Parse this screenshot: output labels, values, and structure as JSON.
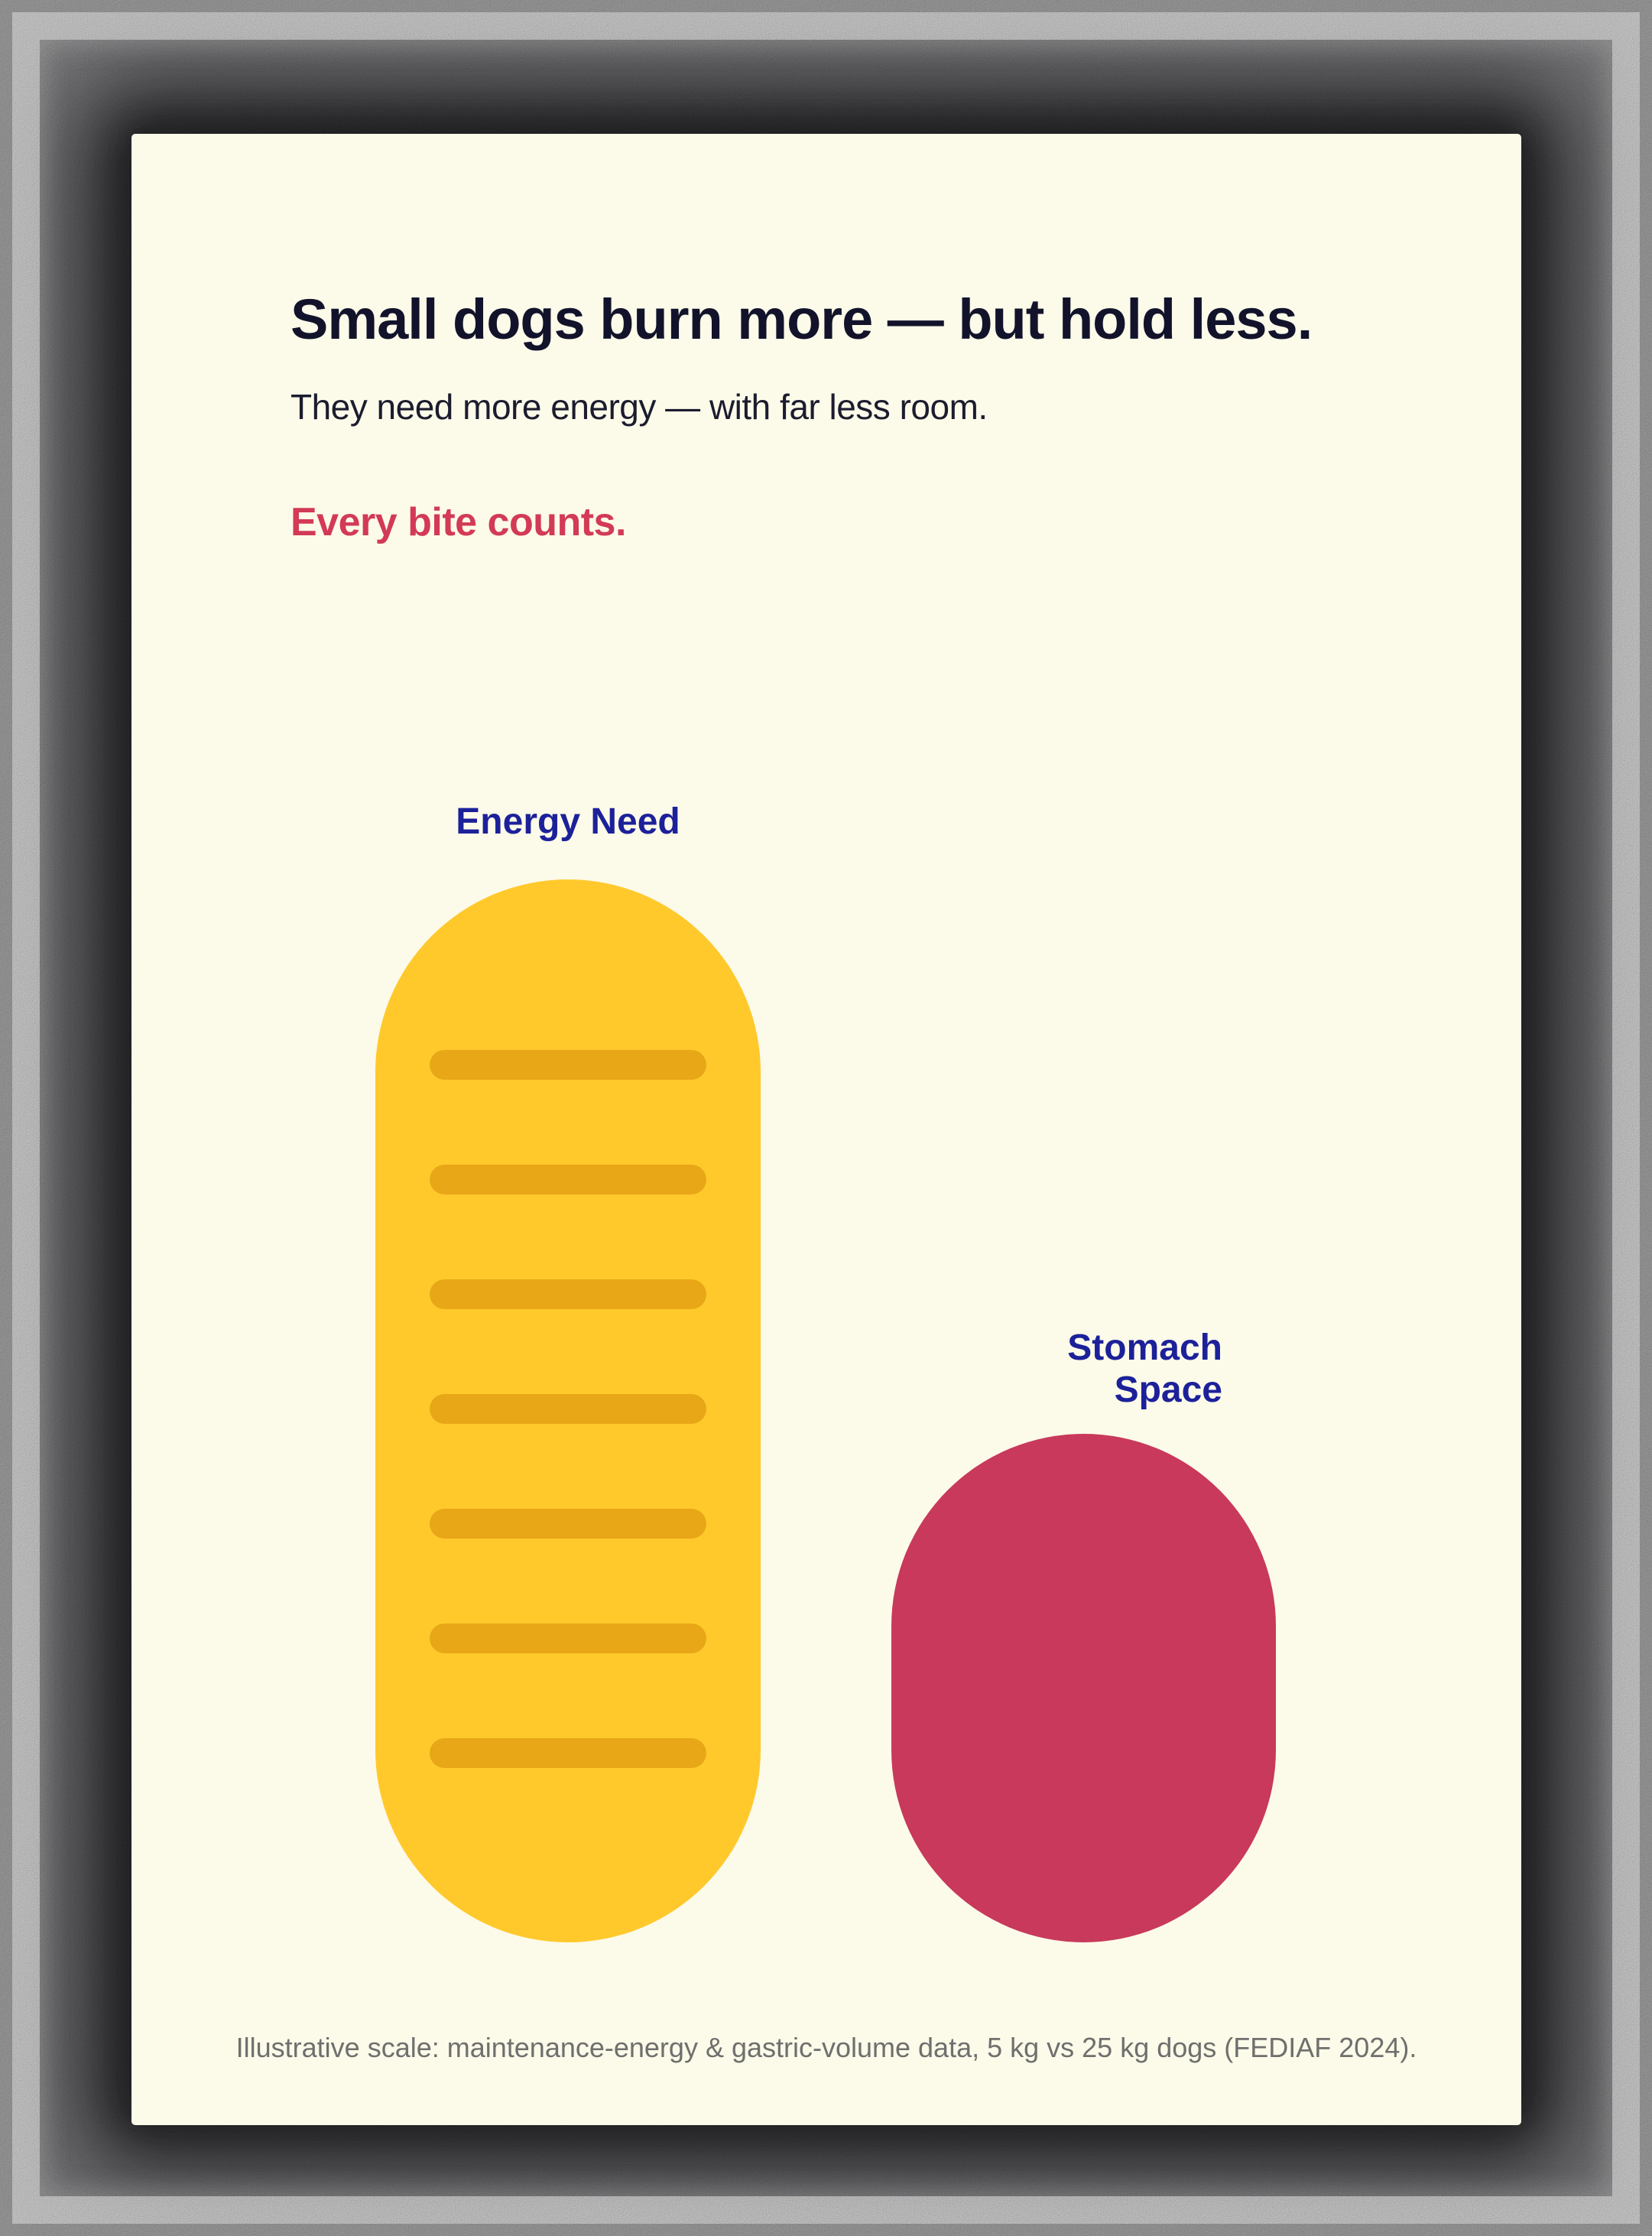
{
  "poster": {
    "title": "Small dogs burn more — but hold less.",
    "subtitle": "They need more energy — with far less room.",
    "tagline": "Every bite counts.",
    "footnote": "Illustrative scale: maintenance-energy & gastric-volume data, 5 kg vs 25 kg dogs (FEDIAF 2024)."
  },
  "figure": {
    "energy_label": "Energy Need",
    "stomach_label": "Stomach Space",
    "energy_stripe_count": 7
  },
  "colors": {
    "cream": "#fcfae9",
    "navy": "#12132b",
    "ink": "#1b1c2e",
    "tag_red": "#d23a56",
    "label_blue": "#1c219a",
    "bar_yellow": "#ffc92c",
    "stripe_orange": "#e8a717",
    "blob_pink": "#c8395b",
    "foot_gray": "#6f6f6d",
    "frame_gray": "#7d7d7d",
    "halo_black": "#070709"
  },
  "chart_data": {
    "type": "bar",
    "categories": [
      "Energy Need",
      "Stomach Space"
    ],
    "values": [
      2.1,
      1.0
    ],
    "value_note": "relative illustrative scale (no numeric axis shown); energy-need bar drawn ~2.1× taller than stomach-space bar, bars bottom-aligned",
    "title": "Small dogs burn more — but hold less.",
    "subtitle": "They need more energy — with far less room.",
    "annotations": [
      "Every bite counts.",
      "Illustrative scale: maintenance-energy & gastric-volume data, 5 kg vs 25 kg dogs (FEDIAF 2024)."
    ],
    "series_colors": [
      "#ffc92c",
      "#c8395b"
    ],
    "legend_position": "labels above each bar",
    "grid": false
  }
}
